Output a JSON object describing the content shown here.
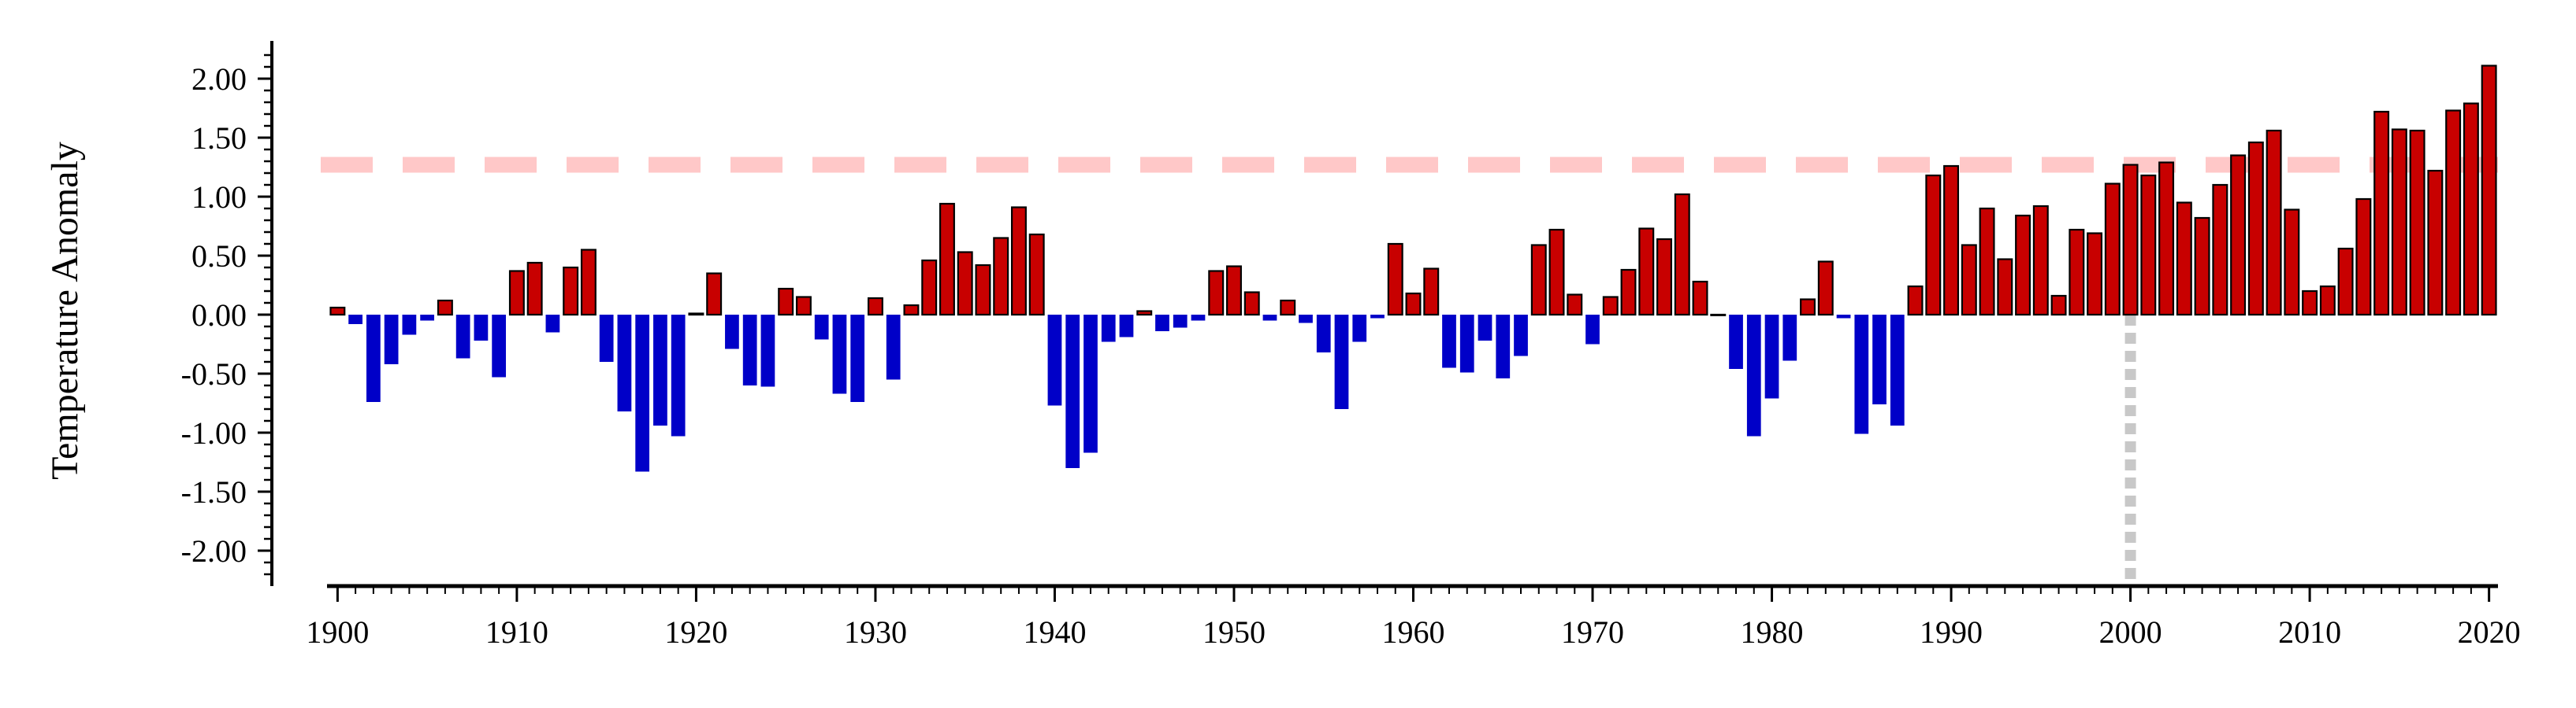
{
  "chart_data": {
    "type": "bar",
    "title": "",
    "xlabel": "",
    "ylabel": "Temperature Anomaly",
    "x_start": 1900,
    "x_end": 2020,
    "xlim": [
      1899.5,
      2020.5
    ],
    "ylim": [
      -2.3,
      2.3
    ],
    "y_ticks": [
      -2.0,
      -1.5,
      -1.0,
      -0.5,
      0.0,
      0.5,
      1.0,
      1.5,
      2.0
    ],
    "y_tick_labels": [
      "-2.00",
      "-1.50",
      "-1.00",
      "-0.50",
      "0.00",
      "0.50",
      "1.00",
      "1.50",
      "2.00"
    ],
    "x_ticks": [
      1900,
      1910,
      1920,
      1930,
      1940,
      1950,
      1960,
      1970,
      1980,
      1990,
      2000,
      2010,
      2020
    ],
    "x_tick_labels": [
      "1900",
      "1910",
      "1920",
      "1930",
      "1940",
      "1950",
      "1960",
      "1970",
      "1980",
      "1990",
      "2000",
      "2010",
      "2020"
    ],
    "values": [
      0.06,
      -0.08,
      -0.74,
      -0.42,
      -0.17,
      -0.05,
      0.12,
      -0.37,
      -0.22,
      -0.53,
      0.37,
      0.44,
      -0.15,
      0.4,
      0.55,
      -0.4,
      -0.82,
      -1.33,
      -0.94,
      -1.03,
      0.01,
      0.35,
      -0.29,
      -0.6,
      -0.61,
      0.22,
      0.15,
      -0.21,
      -0.67,
      -0.74,
      0.14,
      -0.55,
      0.08,
      0.46,
      0.94,
      0.53,
      0.42,
      0.65,
      0.91,
      0.68,
      -0.77,
      -1.3,
      -1.17,
      -0.23,
      -0.19,
      0.03,
      -0.14,
      -0.11,
      -0.05,
      0.37,
      0.41,
      0.19,
      -0.05,
      0.12,
      -0.07,
      -0.32,
      -0.8,
      -0.23,
      -0.03,
      0.6,
      0.18,
      0.39,
      -0.45,
      -0.49,
      -0.22,
      -0.54,
      -0.35,
      0.59,
      0.72,
      0.17,
      -0.25,
      0.15,
      0.38,
      0.73,
      0.64,
      1.02,
      0.28,
      0.0,
      -0.46,
      -1.03,
      -0.71,
      -0.39,
      0.13,
      0.45,
      -0.03,
      -1.01,
      -0.76,
      -0.94,
      0.24,
      1.18,
      1.26,
      0.59,
      0.9,
      0.47,
      0.84,
      0.92,
      0.16,
      0.72,
      0.69,
      1.11,
      1.27,
      1.18,
      1.29,
      0.95,
      0.82,
      1.1,
      1.35,
      1.46,
      1.56,
      0.89,
      0.2,
      0.24,
      0.56,
      0.98,
      1.72,
      1.57,
      1.56,
      1.22,
      1.73,
      1.79,
      2.11
    ],
    "positive_color": "#c80000",
    "negative_color": "#0000c8",
    "reference_line": {
      "y": 1.27,
      "color": "#ffc8c8"
    },
    "marker_line": {
      "x": 2000,
      "color": "#c8c8c8"
    },
    "grid": false,
    "legend": "none"
  }
}
